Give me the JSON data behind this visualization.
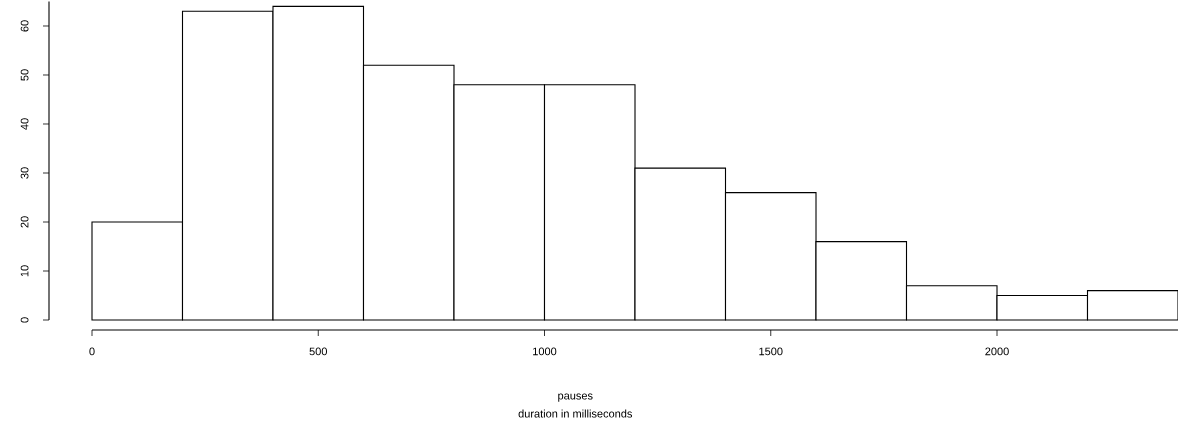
{
  "chart_data": {
    "type": "histogram",
    "title": "pauses",
    "xlabel": "duration in milliseconds",
    "bins": [
      0,
      200,
      400,
      600,
      800,
      1000,
      1200,
      1400,
      1600,
      1800,
      2000,
      2200,
      2400
    ],
    "values": [
      20,
      63,
      64,
      52,
      48,
      48,
      31,
      26,
      16,
      7,
      5,
      6
    ],
    "color": "#ffffff",
    "xlim": [
      0,
      2400
    ],
    "ylim": [
      0,
      65
    ],
    "xticks": [
      0,
      500,
      1000,
      1500,
      2000
    ],
    "yticks": [
      0,
      10,
      20,
      30,
      40,
      50,
      60
    ]
  }
}
